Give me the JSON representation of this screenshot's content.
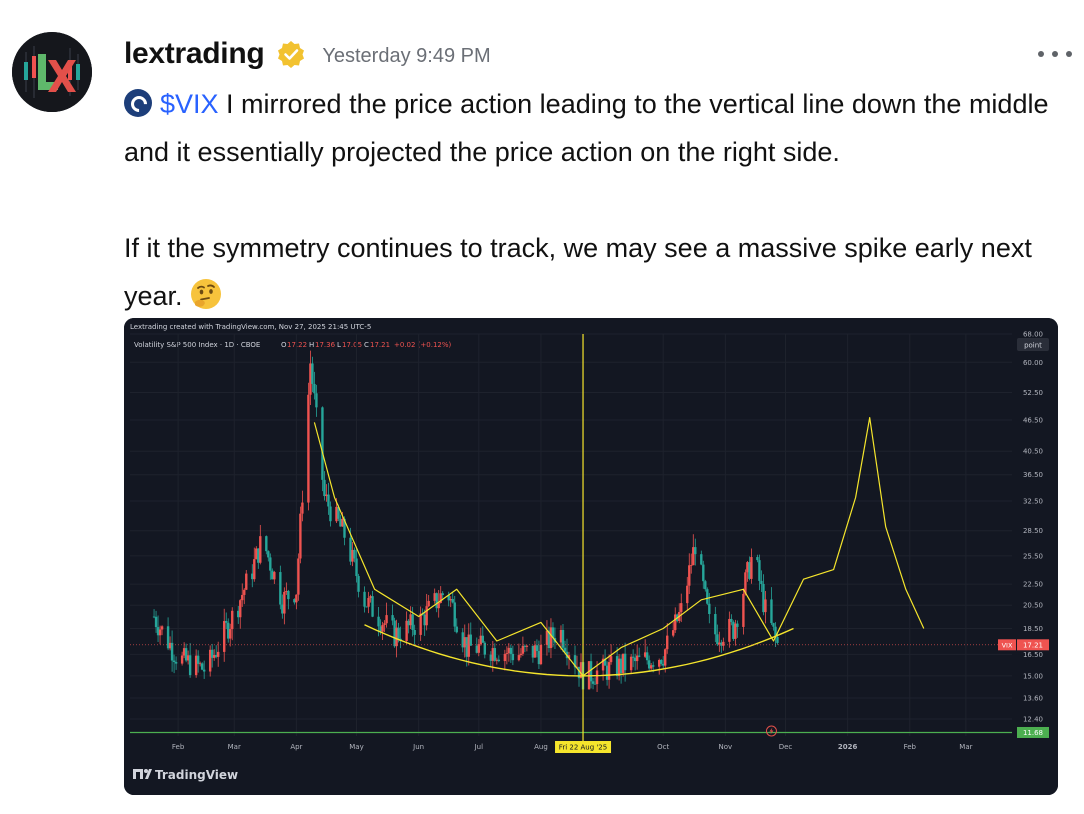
{
  "post": {
    "username": "lextrading",
    "timestamp": "Yesterday 9:49 PM",
    "ticker": "$VIX",
    "line1_rest": " I mirrored the price action leading to the vertical line down the middle and it essentially projected the price action on the right side.",
    "line2": "If it the symmetry continues to track, we may see a massive spike early next year.",
    "emoji": "thinking-face"
  },
  "chart": {
    "credit": "Lextrading created with TradingView.com, Nov 27, 2025 21:45 UTC-5",
    "symbol_line": "Volatility S&P 500 Index · 1D · CBOE",
    "ohlc": {
      "O": "17.22",
      "H": "17.36",
      "L": "17.05",
      "C": "17.21",
      "change": "+0.02 (+0.12%)"
    },
    "scale_label": "point",
    "price_ticks": [
      "68.00",
      "60.00",
      "52.50",
      "46.50",
      "40.50",
      "36.50",
      "32.50",
      "28.50",
      "25.50",
      "22.50",
      "20.50",
      "18.50",
      "16.50",
      "15.00",
      "13.60",
      "12.40"
    ],
    "last_price_label": "VIX",
    "last_price": "17.21",
    "support_price": "11.68",
    "x_labels": [
      "Feb",
      "Mar",
      "Apr",
      "May",
      "Jun",
      "Jul",
      "Aug",
      "Oct",
      "Nov",
      "Dec",
      "2026",
      "Feb",
      "Mar"
    ],
    "crosshair_date": "Fri 22 Aug '25",
    "brand": "TradingView",
    "colors": {
      "bg": "#131722",
      "up": "#26a69a",
      "down": "#ef5350",
      "projection": "#f5e52c",
      "support": "#4caf50",
      "axis_text": "#b2b5be"
    }
  },
  "chart_data": {
    "type": "line",
    "title": "Volatility S&P 500 Index · 1D · CBOE",
    "xlabel": "",
    "ylabel": "",
    "x_range": [
      "2025-01",
      "2026-03"
    ],
    "y_scale": "log",
    "ylim": [
      11.5,
      68
    ],
    "series": [
      {
        "x": [
          "2025-01-20",
          "2025-02-01",
          "2025-02-15",
          "2025-03-01",
          "2025-03-10",
          "2025-03-15",
          "2025-03-25",
          "2025-04-01",
          "2025-04-08",
          "2025-04-15",
          "2025-04-25",
          "2025-05-05",
          "2025-05-20",
          "2025-06-01",
          "2025-06-15",
          "2025-06-25",
          "2025-07-05",
          "2025-07-20",
          "2025-08-01",
          "2025-08-10",
          "2025-08-22",
          "2025-09-05",
          "2025-09-20",
          "2025-10-01",
          "2025-10-10",
          "2025-10-17",
          "2025-10-25",
          "2025-11-05",
          "2025-11-15",
          "2025-11-21",
          "2025-11-27"
        ],
        "values": [
          19.5,
          16.2,
          15.4,
          19.8,
          24,
          27.5,
          21,
          22,
          60,
          33,
          28,
          21,
          18,
          19,
          22,
          17,
          17,
          16.5,
          16.8,
          18.5,
          15,
          15.5,
          16,
          16.5,
          20,
          27,
          18,
          18.5,
          26,
          20,
          17.21
        ]
      },
      {
        "x": [
          "2025-04-10",
          "2025-04-20",
          "2025-05-10",
          "2025-06-01",
          "2025-06-20",
          "2025-07-10",
          "2025-08-01",
          "2025-08-22",
          "2025-09-10",
          "2025-10-01",
          "2025-10-20",
          "2025-11-10",
          "2025-11-25",
          "2025-12-10",
          "2025-12-25",
          "2026-01-05",
          "2026-01-12",
          "2026-01-20",
          "2026-01-30",
          "2026-02-08"
        ],
        "values": [
          46,
          33,
          22,
          19.5,
          22,
          17.5,
          19,
          15,
          17,
          18.5,
          21,
          22,
          17.5,
          23,
          24,
          33,
          47,
          29,
          22,
          18.5
        ]
      }
    ],
    "support_level": 11.68
  }
}
